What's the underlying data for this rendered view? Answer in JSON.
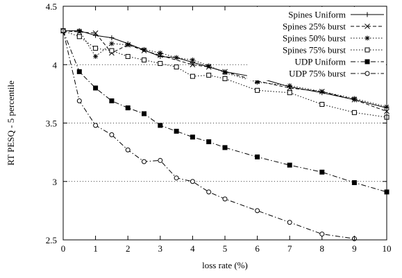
{
  "chart_data": {
    "type": "line",
    "xlabel": "loss rate (%)",
    "ylabel": "RT PESQ - 5 percentile",
    "xlim": [
      0,
      10
    ],
    "ylim": [
      2.5,
      4.5
    ],
    "xticks": [
      0,
      1,
      2,
      3,
      4,
      5,
      6,
      7,
      8,
      9,
      10
    ],
    "yticks": [
      2.5,
      3,
      3.5,
      4,
      4.5
    ],
    "grid": "horizontal dotted at 3, 3.5, 4",
    "legend_position": "top-right",
    "series": [
      {
        "name": "Spines Uniform",
        "marker": "plus",
        "dash": "solid",
        "x": [
          0,
          0.5,
          1,
          1.5,
          2,
          3,
          3.5,
          4,
          5,
          6,
          7,
          8,
          9,
          10
        ],
        "y": [
          4.29,
          4.29,
          4.25,
          4.23,
          4.18,
          4.07,
          4.06,
          4.02,
          3.94,
          3.89,
          3.81,
          3.76,
          3.7,
          3.63
        ]
      },
      {
        "name": "Spines 25% burst",
        "marker": "x",
        "dash": "dashed",
        "x": [
          0,
          0.5,
          1,
          1.5,
          2,
          2.5,
          3,
          4,
          4.5,
          5,
          6,
          7,
          8,
          9,
          10
        ],
        "y": [
          4.29,
          4.28,
          4.27,
          4.1,
          4.17,
          4.12,
          4.08,
          4.0,
          3.98,
          3.94,
          3.86,
          3.8,
          3.77,
          3.7,
          3.6
        ]
      },
      {
        "name": "Spines 50% burst",
        "marker": "star",
        "dash": "dotted",
        "x": [
          0,
          0.5,
          1,
          1.5,
          2,
          2.5,
          3,
          3.5,
          4,
          4.5,
          5,
          6,
          7,
          8,
          9,
          10
        ],
        "y": [
          4.29,
          4.29,
          4.07,
          4.18,
          4.17,
          4.13,
          4.1,
          4.06,
          4.04,
          3.99,
          3.93,
          3.85,
          3.82,
          3.77,
          3.71,
          3.64
        ]
      },
      {
        "name": "Spines 75% burst",
        "marker": "square-open",
        "dash": "dotted",
        "x": [
          0,
          0.5,
          1,
          1.5,
          2,
          2.5,
          3,
          3.5,
          4,
          4.5,
          5,
          6,
          7,
          8,
          9,
          10
        ],
        "y": [
          4.29,
          4.24,
          4.14,
          4.12,
          4.07,
          4.04,
          4.01,
          3.98,
          3.9,
          3.91,
          3.88,
          3.78,
          3.76,
          3.66,
          3.59,
          3.55
        ]
      },
      {
        "name": "UDP Uniform",
        "marker": "square-filled",
        "dash": "dashdot",
        "x": [
          0,
          0.5,
          1,
          1.5,
          2,
          2.5,
          3,
          3.5,
          4,
          4.5,
          5,
          6,
          7,
          8,
          9,
          10
        ],
        "y": [
          4.29,
          3.94,
          3.8,
          3.69,
          3.63,
          3.58,
          3.48,
          3.43,
          3.38,
          3.34,
          3.29,
          3.21,
          3.14,
          3.08,
          2.99,
          2.91
        ]
      },
      {
        "name": "UDP 75% burst",
        "marker": "circle-open",
        "dash": "dashdot",
        "x": [
          0,
          0.5,
          1,
          1.5,
          2,
          2.5,
          3,
          3.5,
          4,
          4.5,
          5,
          6,
          7,
          8,
          9
        ],
        "y": [
          4.29,
          3.69,
          3.48,
          3.4,
          3.27,
          3.17,
          3.18,
          3.03,
          3.0,
          2.91,
          2.85,
          2.75,
          2.65,
          2.55,
          2.51
        ]
      }
    ]
  }
}
